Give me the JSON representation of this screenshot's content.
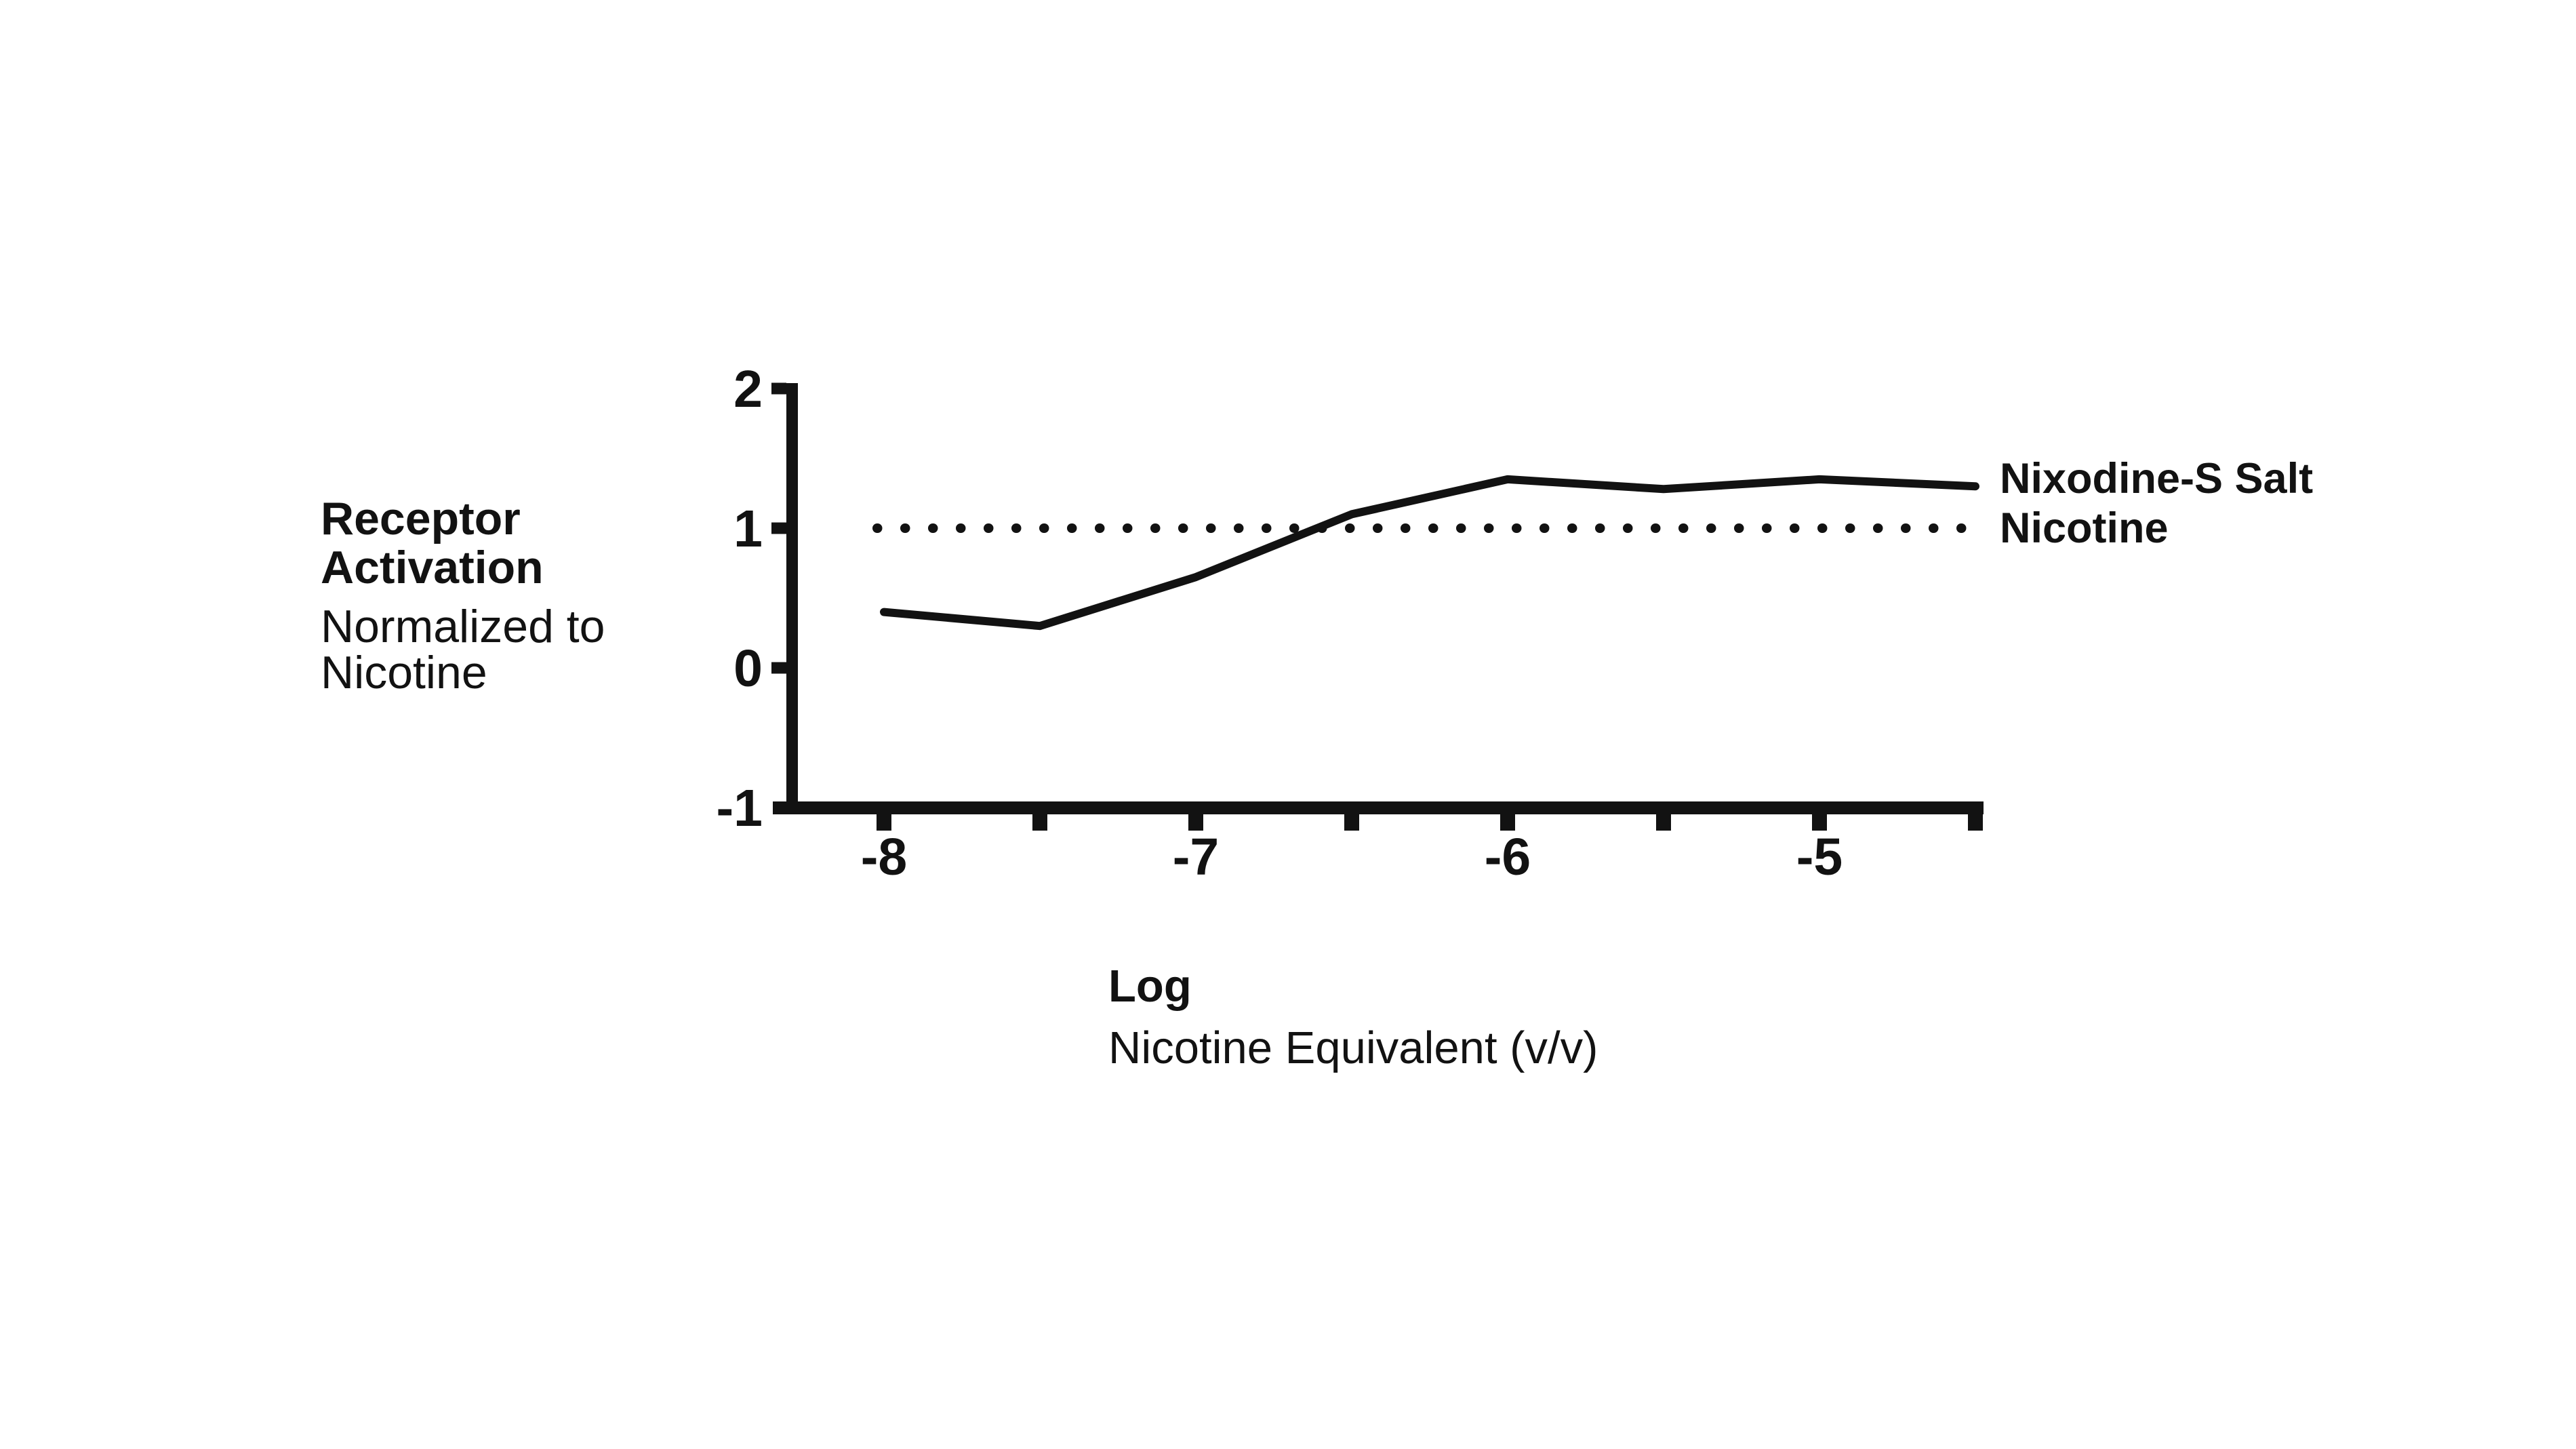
{
  "figure": {
    "background_color": "#ffffff",
    "ink_color": "#121212"
  },
  "y_axis": {
    "title_lines": [
      {
        "text": "Receptor",
        "bold": true
      },
      {
        "text": "Activation",
        "bold": true
      },
      {
        "text": "Normalized to",
        "bold": false
      },
      {
        "text": "Nicotine",
        "bold": false
      }
    ],
    "tick_labels": [
      "2",
      "1",
      "0",
      "-1"
    ],
    "tick_values": [
      2,
      1,
      0,
      -1
    ]
  },
  "x_axis": {
    "title_line1": "Log",
    "title_line2": "Nicotine Equivalent (v/v)",
    "tick_labels": [
      "-8",
      "-7",
      "-6",
      "-5"
    ],
    "labeled_tick_values": [
      -8,
      -7,
      -6,
      -5
    ],
    "minor_tick_values": [
      -7.5,
      -6.5,
      -5.5,
      -4.5
    ]
  },
  "legend": {
    "solid_label": "Nixodine-S Salt",
    "dotted_label": "Nicotine"
  },
  "chart_data": {
    "type": "line",
    "title": "",
    "xlabel": "Log Nicotine Equivalent (v/v)",
    "ylabel": "Receptor Activation Normalized to Nicotine",
    "x": [
      -8,
      -7.5,
      -7,
      -6.5,
      -6,
      -5.5,
      -5,
      -4.5
    ],
    "series": [
      {
        "name": "Nixodine-S Salt",
        "style": "solid",
        "values": [
          0.4,
          0.3,
          0.65,
          1.1,
          1.35,
          1.28,
          1.35,
          1.3
        ]
      },
      {
        "name": "Nicotine",
        "style": "dotted",
        "reference_value": 1,
        "values": [
          1,
          1,
          1,
          1,
          1,
          1,
          1,
          1
        ]
      }
    ],
    "xlim": [
      -8.31,
      -4.47
    ],
    "ylim": [
      -1,
      2
    ],
    "y_ticks": [
      2,
      1,
      0,
      -1
    ],
    "x_ticks_labeled": [
      -8,
      -7,
      -6,
      -5
    ],
    "x_ticks_minor": [
      -7.5,
      -6.5,
      -5.5,
      -4.5
    ],
    "grid": false,
    "legend_position": "right of line ends"
  }
}
